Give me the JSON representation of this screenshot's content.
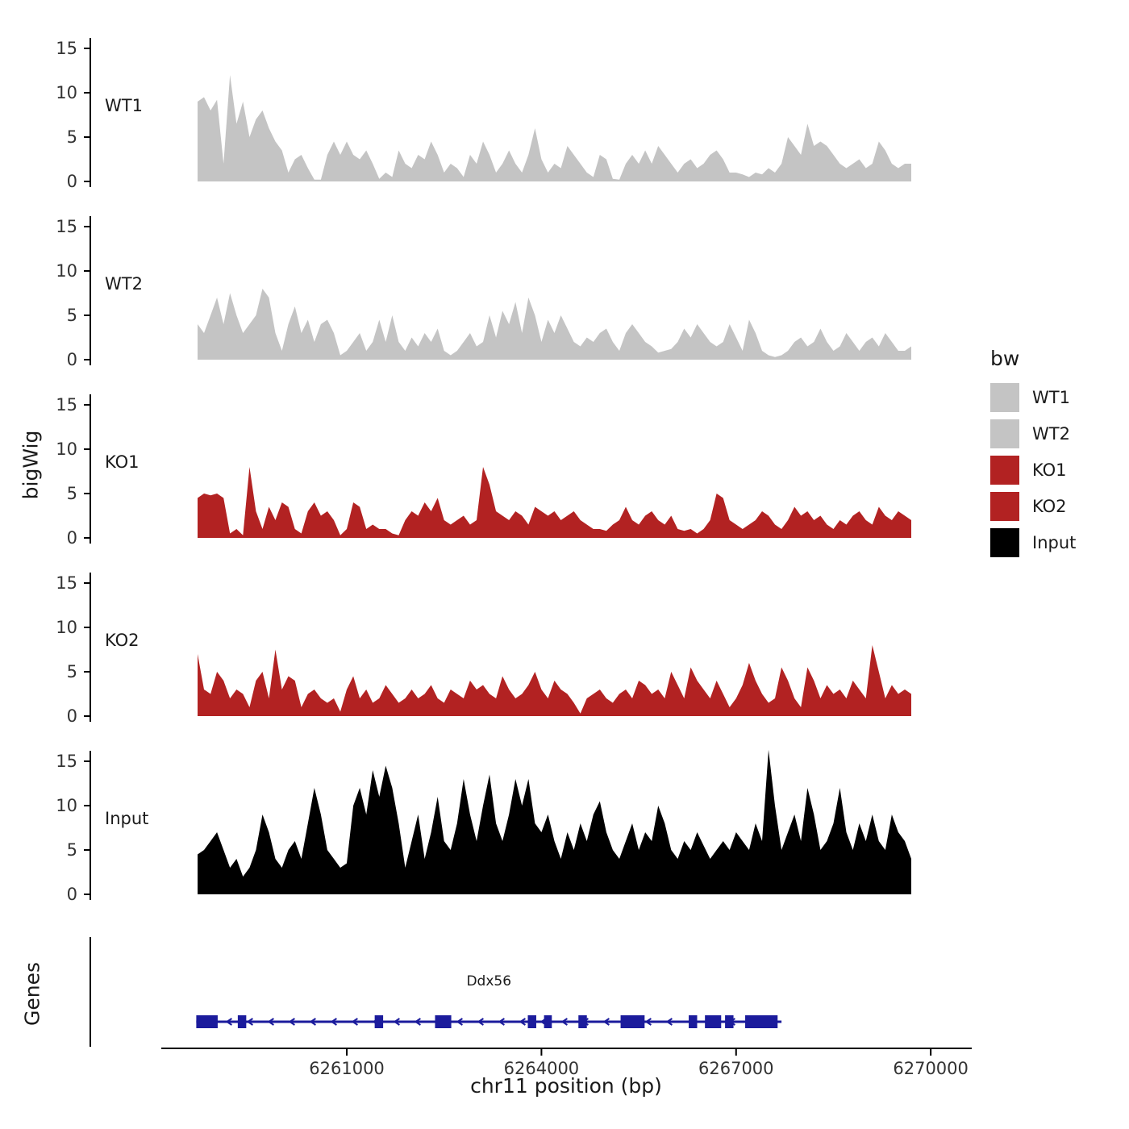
{
  "ylabel": "bigWig",
  "genes_axis_label": "Genes",
  "xlabel": "chr11 position (bp)",
  "legend": {
    "title": "bw",
    "entries": [
      {
        "label": "WT1",
        "color": "#C4C4C4"
      },
      {
        "label": "WT2",
        "color": "#C4C4C4"
      },
      {
        "label": "KO1",
        "color": "#B22222"
      },
      {
        "label": "KO2",
        "color": "#B22222"
      },
      {
        "label": "Input",
        "color": "#000000"
      }
    ]
  },
  "chart_data": {
    "type": "area",
    "title": "",
    "xlabel": "chr11 position (bp)",
    "ylabel": "bigWig",
    "x_domain": [
      6258700,
      6269700
    ],
    "x_ticks": [
      6261000,
      6264000,
      6267000,
      6270000
    ],
    "y_ticks": [
      0,
      5,
      10,
      15
    ],
    "y_lim": [
      0,
      17
    ],
    "grid": false,
    "legend_position": "right",
    "tracks": [
      {
        "name": "WT1",
        "color": "#C4C4C4",
        "values": [
          9,
          9.5,
          8,
          9.2,
          2,
          12,
          6.5,
          9,
          5,
          7,
          8,
          6,
          4.5,
          3.5,
          1,
          2.5,
          3,
          1.5,
          0.2,
          0.2,
          3,
          4.5,
          3,
          4.5,
          3,
          2.5,
          3.5,
          2,
          0.3,
          1,
          0.5,
          3.5,
          2,
          1.5,
          3,
          2.5,
          4.5,
          3,
          1,
          2,
          1.5,
          0.5,
          3,
          2,
          4.5,
          3,
          1,
          2,
          3.5,
          2,
          1,
          3,
          6,
          2.5,
          1,
          2,
          1.5,
          4,
          3,
          2,
          1,
          0.5,
          3,
          2.5,
          0.3,
          0.2,
          2,
          3,
          2,
          3.5,
          2,
          4,
          3,
          2,
          1,
          2,
          2.5,
          1.5,
          2,
          3,
          3.5,
          2.5,
          1,
          1,
          0.8,
          0.5,
          1,
          0.8,
          1.5,
          1,
          2,
          5,
          4,
          3,
          6.5,
          4,
          4.5,
          4,
          3,
          2,
          1.5,
          2,
          2.5,
          1.5,
          2,
          4.5,
          3.5,
          2,
          1.5,
          2,
          2
        ]
      },
      {
        "name": "WT2",
        "color": "#C4C4C4",
        "values": [
          4,
          3,
          5,
          7,
          4,
          7.5,
          5,
          3,
          4,
          5,
          8,
          7,
          3,
          1,
          4,
          6,
          3,
          4.5,
          2,
          4,
          4.5,
          3,
          0.5,
          1,
          2,
          3,
          1,
          2,
          4.5,
          2,
          5,
          2,
          1,
          2.5,
          1.5,
          3,
          2,
          3.5,
          1,
          0.5,
          1,
          2,
          3,
          1.5,
          2,
          5,
          2.5,
          5.5,
          4,
          6.5,
          3,
          7,
          5,
          2,
          4.5,
          3,
          5,
          3.5,
          2,
          1.5,
          2.5,
          2,
          3,
          3.5,
          2,
          1,
          3,
          4,
          3,
          2,
          1.5,
          0.8,
          1,
          1.2,
          2,
          3.5,
          2.5,
          4,
          3,
          2,
          1.5,
          2,
          4,
          2.5,
          1,
          4.5,
          3,
          1,
          0.5,
          0.3,
          0.5,
          1,
          2,
          2.5,
          1.5,
          2,
          3.5,
          2,
          1,
          1.5,
          3,
          2,
          1,
          2,
          2.5,
          1.5,
          3,
          2,
          1,
          1,
          1.5
        ]
      },
      {
        "name": "KO1",
        "color": "#B22222",
        "values": [
          4.5,
          5,
          4.8,
          5,
          4.5,
          0.5,
          1,
          0.3,
          8,
          3,
          1,
          3.5,
          2,
          4,
          3.5,
          1,
          0.5,
          3,
          4,
          2.5,
          3,
          2,
          0.3,
          1,
          4,
          3.5,
          1,
          1.5,
          1,
          1,
          0.5,
          0.3,
          2,
          3,
          2.5,
          4,
          3,
          4.5,
          2,
          1.5,
          2,
          2.5,
          1.5,
          2,
          8,
          6,
          3,
          2.5,
          2,
          3,
          2.5,
          1.5,
          3.5,
          3,
          2.5,
          3,
          2,
          2.5,
          3,
          2,
          1.5,
          1,
          1,
          0.8,
          1.5,
          2,
          3.5,
          2,
          1.5,
          2.5,
          3,
          2,
          1.5,
          2.5,
          1,
          0.8,
          1,
          0.5,
          1,
          2,
          5,
          4.5,
          2,
          1.5,
          1,
          1.5,
          2,
          3,
          2.5,
          1.5,
          1,
          2,
          3.5,
          2.5,
          3,
          2,
          2.5,
          1.5,
          1,
          2,
          1.5,
          2.5,
          3,
          2,
          1.5,
          3.5,
          2.5,
          2,
          3,
          2.5,
          2
        ]
      },
      {
        "name": "KO2",
        "color": "#B22222",
        "values": [
          7,
          3,
          2.5,
          5,
          4,
          2,
          3,
          2.5,
          1,
          4,
          5,
          2,
          7.5,
          3,
          4.5,
          4,
          1,
          2.5,
          3,
          2,
          1.5,
          2,
          0.5,
          3,
          4.5,
          2,
          3,
          1.5,
          2,
          3.5,
          2.5,
          1.5,
          2,
          3,
          2,
          2.5,
          3.5,
          2,
          1.5,
          3,
          2.5,
          2,
          4,
          3,
          3.5,
          2.5,
          2,
          4.5,
          3,
          2,
          2.5,
          3.5,
          5,
          3,
          2,
          4,
          3,
          2.5,
          1.5,
          0.3,
          2,
          2.5,
          3,
          2,
          1.5,
          2.5,
          3,
          2,
          4,
          3.5,
          2.5,
          3,
          2,
          5,
          3.5,
          2,
          5.5,
          4,
          3,
          2,
          4,
          2.5,
          1,
          2,
          3.5,
          6,
          4,
          2.5,
          1.5,
          2,
          5.5,
          4,
          2,
          1,
          5.5,
          4,
          2,
          3.5,
          2.5,
          3,
          2,
          4,
          3,
          2,
          8,
          5,
          2,
          3.5,
          2.5,
          3,
          2.5
        ]
      },
      {
        "name": "Input",
        "color": "#000000",
        "values": [
          4.5,
          5,
          6,
          7,
          5,
          3,
          4,
          2,
          3,
          5,
          9,
          7,
          4,
          3,
          5,
          6,
          4,
          8,
          12,
          9,
          5,
          4,
          3,
          3.5,
          10,
          12,
          9,
          14,
          11,
          14.5,
          12,
          8,
          3,
          6,
          9,
          4,
          7,
          11,
          6,
          5,
          8,
          13,
          9,
          6,
          10,
          13.5,
          8,
          6,
          9,
          13,
          10,
          13,
          8,
          7,
          9,
          6,
          4,
          7,
          5,
          8,
          6,
          9,
          10.5,
          7,
          5,
          4,
          6,
          8,
          5,
          7,
          6,
          10,
          8,
          5,
          4,
          6,
          5,
          7,
          5.5,
          4,
          5,
          6,
          5,
          7,
          6,
          5,
          8,
          6,
          16.3,
          10,
          5,
          7,
          9,
          6,
          12,
          9,
          5,
          6,
          8,
          12,
          7,
          5,
          8,
          6,
          9,
          6,
          5,
          9,
          7,
          6,
          4
        ]
      }
    ],
    "gene_track": {
      "label": "Genes",
      "gene": {
        "name": "Ddx56",
        "strand": "-",
        "color": "#1B1B9C",
        "start": 6258680,
        "end": 6267700,
        "exons": [
          [
            6258680,
            6259010
          ],
          [
            6259320,
            6259450
          ],
          [
            6261430,
            6261560
          ],
          [
            6262360,
            6262610
          ],
          [
            6263790,
            6263920
          ],
          [
            6264040,
            6264160
          ],
          [
            6264570,
            6264700
          ],
          [
            6265220,
            6265590
          ],
          [
            6266270,
            6266400
          ],
          [
            6266520,
            6266770
          ],
          [
            6266830,
            6266960
          ],
          [
            6267140,
            6267640
          ]
        ]
      }
    }
  }
}
